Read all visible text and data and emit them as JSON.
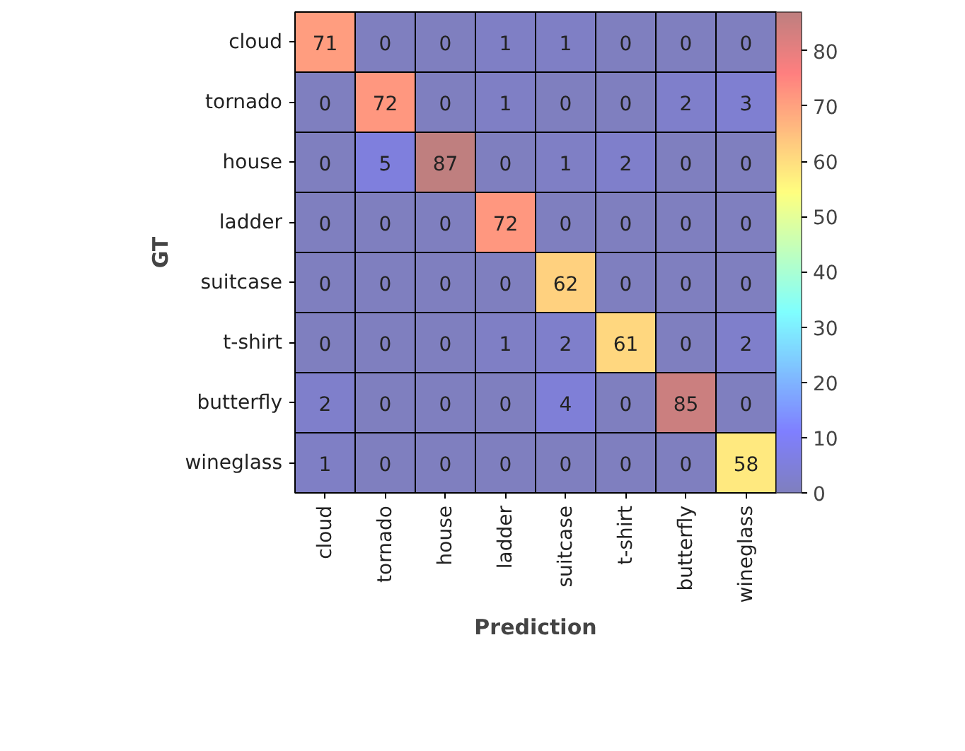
{
  "chart_data": {
    "type": "heatmap",
    "xlabel": "Prediction",
    "ylabel": "GT",
    "categories": [
      "cloud",
      "tornado",
      "house",
      "ladder",
      "suitcase",
      "t-shirt",
      "butterfly",
      "wineglass"
    ],
    "y_categories": [
      "cloud",
      "tornado",
      "house",
      "ladder",
      "suitcase",
      "t-shirt",
      "butterfly",
      "wineglass"
    ],
    "cells": [
      [
        71,
        0,
        0,
        1,
        1,
        0,
        0,
        0
      ],
      [
        0,
        72,
        0,
        1,
        0,
        0,
        2,
        3
      ],
      [
        0,
        5,
        87,
        0,
        1,
        2,
        0,
        0
      ],
      [
        0,
        0,
        0,
        72,
        0,
        0,
        0,
        0
      ],
      [
        0,
        0,
        0,
        0,
        62,
        0,
        0,
        0
      ],
      [
        0,
        0,
        0,
        1,
        2,
        61,
        0,
        2
      ],
      [
        2,
        0,
        0,
        0,
        4,
        0,
        85,
        0
      ],
      [
        1,
        0,
        0,
        0,
        0,
        0,
        0,
        58
      ]
    ],
    "data_labels": true,
    "clim": [
      0,
      87
    ],
    "cticks": [
      0,
      10,
      20,
      30,
      40,
      50,
      60,
      70,
      80
    ]
  }
}
